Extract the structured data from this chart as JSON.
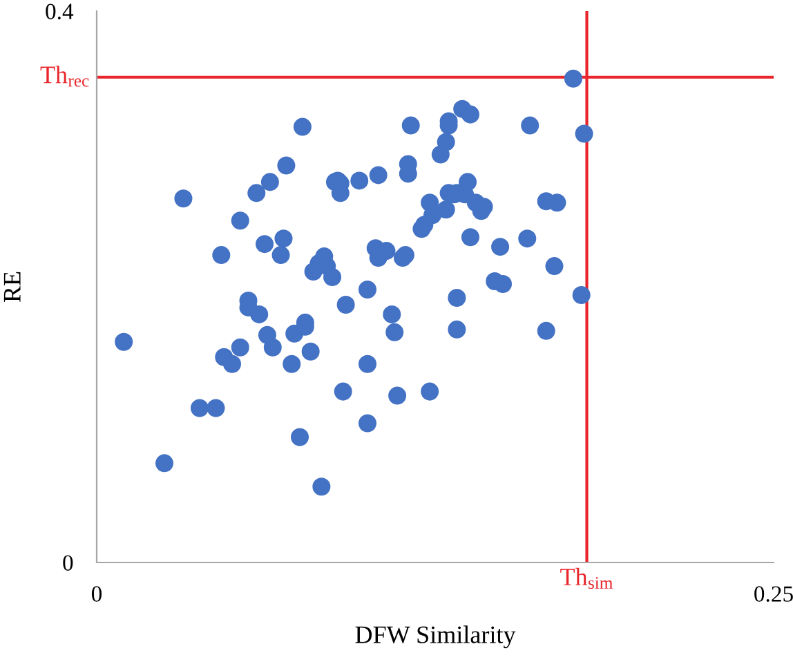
{
  "chart_data": {
    "type": "scatter",
    "xlabel": "DFW Similarity",
    "ylabel": "RE",
    "xlim": [
      0,
      0.25
    ],
    "ylim": [
      0,
      0.4
    ],
    "xticks": [
      0,
      0.25
    ],
    "yticks": [
      0,
      0.4
    ],
    "marker": "circle",
    "grid": false,
    "legend": false,
    "series": [
      {
        "color": "#4472c4",
        "x": [
          0.01,
          0.025,
          0.032,
          0.038,
          0.044,
          0.046,
          0.047,
          0.05,
          0.053,
          0.053,
          0.056,
          0.056,
          0.059,
          0.06,
          0.062,
          0.063,
          0.064,
          0.065,
          0.068,
          0.069,
          0.07,
          0.072,
          0.073,
          0.075,
          0.076,
          0.077,
          0.077,
          0.079,
          0.08,
          0.082,
          0.083,
          0.084,
          0.085,
          0.087,
          0.088,
          0.089,
          0.09,
          0.09,
          0.092,
          0.091,
          0.097,
          0.1,
          0.1,
          0.1,
          0.103,
          0.104,
          0.104,
          0.107,
          0.109,
          0.11,
          0.111,
          0.113,
          0.114,
          0.116,
          0.115,
          0.115,
          0.12,
          0.121,
          0.123,
          0.123,
          0.124,
          0.127,
          0.129,
          0.129,
          0.13,
          0.13,
          0.13,
          0.132,
          0.133,
          0.133,
          0.133,
          0.135,
          0.136,
          0.137,
          0.138,
          0.138,
          0.14,
          0.142,
          0.143,
          0.149,
          0.15,
          0.16,
          0.159,
          0.166,
          0.166,
          0.169,
          0.17,
          0.176,
          0.179,
          0.18,
          0.147
        ],
        "values": [
          0.16,
          0.072,
          0.264,
          0.112,
          0.112,
          0.223,
          0.149,
          0.144,
          0.248,
          0.156,
          0.19,
          0.185,
          0.268,
          0.18,
          0.231,
          0.165,
          0.276,
          0.156,
          0.223,
          0.235,
          0.288,
          0.144,
          0.166,
          0.091,
          0.316,
          0.174,
          0.171,
          0.153,
          0.211,
          0.217,
          0.055,
          0.222,
          0.215,
          0.207,
          0.276,
          0.277,
          0.275,
          0.268,
          0.187,
          0.124,
          0.277,
          0.101,
          0.198,
          0.144,
          0.228,
          0.281,
          0.221,
          0.226,
          0.18,
          0.167,
          0.121,
          0.221,
          0.223,
          0.317,
          0.289,
          0.282,
          0.242,
          0.245,
          0.124,
          0.261,
          0.252,
          0.296,
          0.305,
          0.256,
          0.268,
          0.317,
          0.32,
          0.267,
          0.268,
          0.192,
          0.169,
          0.329,
          0.267,
          0.276,
          0.325,
          0.236,
          0.261,
          0.255,
          0.258,
          0.229,
          0.202,
          0.317,
          0.235,
          0.262,
          0.168,
          0.215,
          0.261,
          0.351,
          0.194,
          0.311,
          0.204
        ]
      }
    ],
    "ref_lines": [
      {
        "axis": "y",
        "value": 0.352,
        "label": "Th$_{rec}$",
        "color": "#e8262b"
      },
      {
        "axis": "x",
        "value": 0.181,
        "label": "Th$_{sim}$",
        "color": "#e8262b"
      }
    ]
  }
}
